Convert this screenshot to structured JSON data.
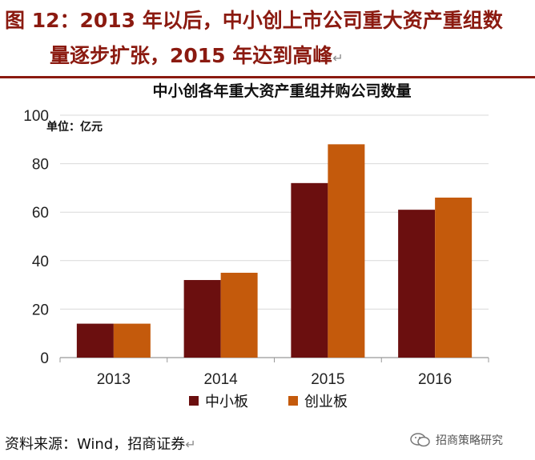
{
  "heading": {
    "line1": "图 12：2013 年以后，中小创上市公司重大资产重组数",
    "line2": "量逐步扩张，2015 年达到高峰"
  },
  "source": "资料来源：Wind，招商证券",
  "watermark": "招商策略研究",
  "colors": {
    "heading": "#8b1a10",
    "series_1": "#6b0f0f",
    "series_2": "#c45a0c"
  },
  "chart_data": {
    "type": "bar",
    "title": "中小创各年重大资产重组并购公司数量",
    "unit_label": "单位：亿元",
    "categories": [
      "2013",
      "2014",
      "2015",
      "2016"
    ],
    "series": [
      {
        "name": "中小板",
        "values": [
          14,
          32,
          72,
          61
        ]
      },
      {
        "name": "创业板",
        "values": [
          14,
          35,
          88,
          66
        ]
      }
    ],
    "ylim": [
      0,
      100
    ],
    "yticks": [
      0,
      20,
      40,
      60,
      80,
      100
    ],
    "grid": true,
    "legend_position": "bottom"
  }
}
